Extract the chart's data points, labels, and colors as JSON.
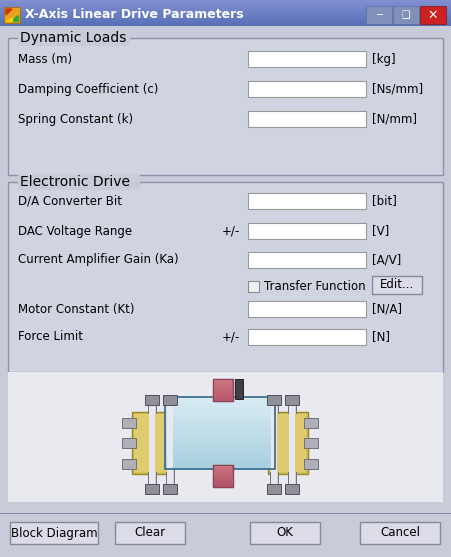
{
  "title": "X-Axis Linear Drive Parameters",
  "title_bar_color": "#6070a8",
  "window_bg": "#c8ccd8",
  "section_bg": "#d0d4e0",
  "section1_title": "Dynamic Loads",
  "section2_title": "Electronic Drive",
  "dynamic_loads_fields": [
    {
      "label": "Mass (m)",
      "unit": "[kg]",
      "prefix": ""
    },
    {
      "label": "Damping Coefficient (c)",
      "unit": "[Ns/mm]",
      "prefix": ""
    },
    {
      "label": "Spring Constant (k)",
      "unit": "[N/mm]",
      "prefix": ""
    }
  ],
  "electronic_drive_fields": [
    {
      "label": "D/A Converter Bit",
      "unit": "[bit]",
      "prefix": ""
    },
    {
      "label": "DAC Voltage Range",
      "unit": "[V]",
      "prefix": "+/-"
    },
    {
      "label": "Current Amplifier Gain (Ka)",
      "unit": "[A/V]",
      "prefix": ""
    },
    {
      "label": "Motor Constant (Kt)",
      "unit": "[N/A]",
      "prefix": ""
    },
    {
      "label": "Force Limit",
      "unit": "[N]",
      "prefix": "+/-"
    }
  ],
  "buttons": [
    "Block Diagram",
    "Clear",
    "OK",
    "Cancel"
  ],
  "checkbox_label": "Transfer Function",
  "edit_button": "Edit...",
  "input_box_color": "#ffffff",
  "input_box_border": "#999999",
  "label_color": "#000000",
  "button_bg": "#dcdce8",
  "button_border": "#888899"
}
